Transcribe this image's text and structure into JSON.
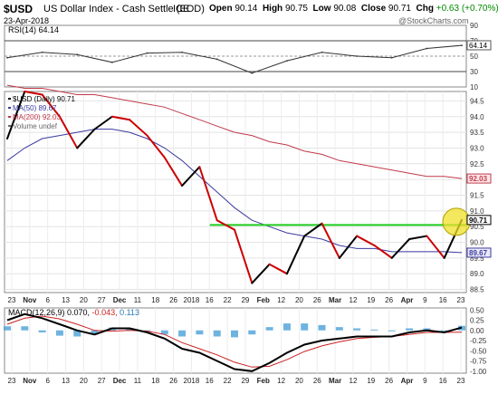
{
  "header": {
    "symbol": "$USD",
    "name": "US Dollar Index - Cash Settle (EOD)",
    "exchange": "ICE",
    "date": "23-Apr-2018",
    "open_label": "Open",
    "open": "90.14",
    "high_label": "High",
    "high": "90.75",
    "low_label": "Low",
    "low": "90.08",
    "close_label": "Close",
    "close": "90.71",
    "chg_label": "Chg",
    "chg": "+0.63 (+0.70%)",
    "watermark": "@StockCharts.com"
  },
  "colors": {
    "price_up": "#000000",
    "price_down": "#cc0000",
    "ma50": "#3a3aa0",
    "ma200": "#c03a4a",
    "resistance": "#22cc22",
    "highlight": "#f0e02a",
    "macd_hist": "#4aa0d8",
    "macd_signal": "#cc2222",
    "rsi_line": "#333333"
  },
  "chart_data": [
    {
      "type": "line",
      "panel": "RSI",
      "legend": "RSI(14) 64.14",
      "ylim": [
        10,
        90
      ],
      "y_ticks": [
        "90",
        "70",
        "50",
        "30",
        "10"
      ],
      "last_label": "64.14",
      "x": [
        "Oct 23",
        "Nov 6",
        "Nov 20",
        "Dec 4",
        "Dec 18",
        "Jan 2",
        "Jan 16",
        "Jan 29",
        "Feb 12",
        "Feb 26",
        "Mar 12",
        "Mar 26",
        "Apr 9",
        "Apr 23"
      ],
      "values": [
        48,
        55,
        52,
        42,
        54,
        55,
        46,
        28,
        44,
        55,
        50,
        48,
        60,
        64
      ]
    },
    {
      "type": "line",
      "panel": "Price",
      "legend": [
        "$USD (Daily) 90.71",
        "MA(50) 89.67",
        "MA(200) 92.03",
        "Volume undef"
      ],
      "ylim": [
        88.4,
        94.8
      ],
      "y_ticks": [
        "94.5",
        "94.0",
        "93.5",
        "93.0",
        "92.5",
        "92.0",
        "91.5",
        "91.0",
        "90.5",
        "90.0",
        "89.5",
        "89.0",
        "88.5"
      ],
      "last_labels": [
        "92.03",
        "90.71",
        "89.67"
      ],
      "x_ticks": [
        "23",
        "Nov",
        "6",
        "13",
        "20",
        "27",
        "Dec",
        "11",
        "18",
        "26",
        "2018",
        "16",
        "22",
        "29",
        "Feb",
        "12",
        "20",
        "26",
        "Mar",
        "12",
        "19",
        "26",
        "Apr",
        "9",
        "16",
        "23"
      ],
      "series": [
        {
          "name": "$USD (Daily)",
          "x": [
            "Oct 23",
            "Oct 30",
            "Nov 6",
            "Nov 13",
            "Nov 20",
            "Nov 27",
            "Dec 4",
            "Dec 11",
            "Dec 18",
            "Dec 26",
            "Jan 2",
            "Jan 9",
            "Jan 16",
            "Jan 22",
            "Jan 29",
            "Feb 5",
            "Feb 12",
            "Feb 19",
            "Feb 26",
            "Mar 5",
            "Mar 12",
            "Mar 19",
            "Mar 26",
            "Apr 2",
            "Apr 9",
            "Apr 16",
            "Apr 23"
          ],
          "values": [
            93.3,
            94.8,
            94.7,
            94.0,
            93.0,
            93.6,
            94.0,
            93.9,
            93.4,
            92.7,
            91.8,
            92.4,
            90.7,
            90.4,
            88.7,
            89.3,
            89.0,
            90.2,
            90.6,
            89.5,
            90.2,
            89.9,
            89.5,
            90.1,
            90.2,
            89.5,
            90.71
          ]
        },
        {
          "name": "MA(50)",
          "values": [
            92.6,
            93.0,
            93.3,
            93.4,
            93.5,
            93.6,
            93.6,
            93.5,
            93.3,
            93.0,
            92.6,
            92.1,
            91.6,
            91.1,
            90.7,
            90.5,
            90.3,
            90.2,
            90.1,
            89.9,
            89.8,
            89.8,
            89.7,
            89.7,
            89.7,
            89.7,
            89.67
          ]
        },
        {
          "name": "MA(200)",
          "values": [
            95.0,
            94.9,
            94.9,
            94.8,
            94.7,
            94.7,
            94.6,
            94.5,
            94.4,
            94.3,
            94.1,
            93.9,
            93.7,
            93.5,
            93.4,
            93.2,
            93.1,
            92.9,
            92.8,
            92.6,
            92.5,
            92.4,
            92.3,
            92.2,
            92.1,
            92.1,
            92.03
          ]
        }
      ],
      "resistance_level": 90.55
    },
    {
      "type": "line",
      "panel": "MACD",
      "legend": [
        "MACD(12,26,9)",
        "0.070",
        "-0.043",
        "0.113"
      ],
      "ylim": [
        -1.05,
        0.55
      ],
      "y_ticks": [
        "0.50",
        "0.25",
        "0.00",
        "-0.25",
        "-0.50",
        "-0.75",
        "-1.00"
      ],
      "x_ticks": [
        "23",
        "Nov",
        "6",
        "13",
        "20",
        "27",
        "Dec",
        "11",
        "18",
        "26",
        "2018",
        "16",
        "22",
        "29",
        "Feb",
        "12",
        "20",
        "26",
        "Mar",
        "12",
        "19",
        "26",
        "Apr",
        "9",
        "16",
        "23"
      ],
      "series": [
        {
          "name": "MACD",
          "values": [
            0.25,
            0.4,
            0.3,
            0.15,
            0.0,
            -0.1,
            0.05,
            0.05,
            -0.05,
            -0.2,
            -0.45,
            -0.55,
            -0.75,
            -0.95,
            -1.0,
            -0.8,
            -0.55,
            -0.35,
            -0.25,
            -0.2,
            -0.15,
            -0.15,
            -0.15,
            -0.05,
            0.0,
            -0.05,
            0.07
          ]
        },
        {
          "name": "Signal",
          "values": [
            0.15,
            0.3,
            0.35,
            0.28,
            0.15,
            0.0,
            -0.02,
            0.0,
            -0.02,
            -0.1,
            -0.3,
            -0.45,
            -0.6,
            -0.78,
            -0.9,
            -0.88,
            -0.72,
            -0.52,
            -0.38,
            -0.28,
            -0.2,
            -0.17,
            -0.15,
            -0.1,
            -0.05,
            -0.05,
            -0.043
          ]
        },
        {
          "name": "Histogram",
          "values": [
            0.1,
            0.1,
            -0.05,
            -0.13,
            -0.15,
            -0.1,
            0.07,
            0.05,
            -0.03,
            -0.1,
            -0.15,
            -0.1,
            -0.15,
            -0.17,
            -0.1,
            0.08,
            0.17,
            0.17,
            0.13,
            0.08,
            0.05,
            0.02,
            0.0,
            0.05,
            0.05,
            0.0,
            0.113
          ]
        }
      ]
    }
  ]
}
